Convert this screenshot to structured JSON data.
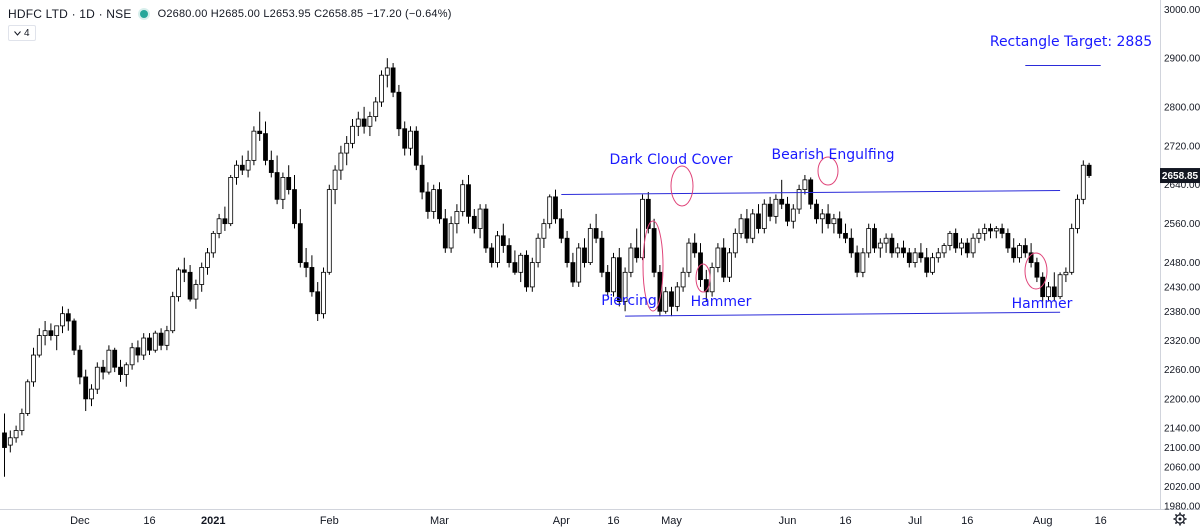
{
  "header": {
    "symbol": "HDFC LTD · 1D · NSE",
    "ohlc": "O2680.00 H2685.00 L2653.95 C2658.85 −17.20 (−0.64%)",
    "collapse_label": "4",
    "collapse_icon": "chevron-down-icon"
  },
  "colors": {
    "annotation": "#1a1aff",
    "trendline": "#2b2bd9",
    "ellipse": "#e0457a",
    "candle_border": "#000000",
    "bear_fill": "#000000",
    "bull_fill": "#ffffff",
    "price_label_bg": "#131722"
  },
  "chart_data": {
    "type": "candlestick",
    "title": "",
    "symbol": "HDFC LTD",
    "interval": "1D",
    "exchange": "NSE",
    "last_price": "2658.85",
    "y_axis": {
      "range": [
        1950,
        3010
      ],
      "ticks": [
        "3000.00",
        "2900.00",
        "2800.00",
        "2720.00",
        "2640.00",
        "2560.00",
        "2480.00",
        "2430.00",
        "2380.00",
        "2320.00",
        "2260.00",
        "2200.00",
        "2140.00",
        "2100.00",
        "2060.00",
        "2020.00",
        "1980.00"
      ]
    },
    "x_axis": {
      "ticks": [
        {
          "label": "Dec",
          "i": 13
        },
        {
          "label": "16",
          "i": 25
        },
        {
          "label": "2021",
          "i": 36
        },
        {
          "label": "Feb",
          "i": 56
        },
        {
          "label": "Mar",
          "i": 75
        },
        {
          "label": "Apr",
          "i": 96
        },
        {
          "label": "16",
          "i": 105
        },
        {
          "label": "May",
          "i": 115
        },
        {
          "label": "Jun",
          "i": 135
        },
        {
          "label": "16",
          "i": 145
        },
        {
          "label": "Jul",
          "i": 157
        },
        {
          "label": "16",
          "i": 166
        },
        {
          "label": "Aug",
          "i": 179
        },
        {
          "label": "16",
          "i": 189
        }
      ]
    },
    "candles": [
      [
        2130,
        2170,
        2040,
        2100
      ],
      [
        2105,
        2135,
        2090,
        2120
      ],
      [
        2120,
        2145,
        2110,
        2135
      ],
      [
        2135,
        2180,
        2125,
        2170
      ],
      [
        2170,
        2240,
        2165,
        2235
      ],
      [
        2235,
        2305,
        2225,
        2290
      ],
      [
        2290,
        2345,
        2285,
        2330
      ],
      [
        2330,
        2360,
        2310,
        2340
      ],
      [
        2340,
        2355,
        2320,
        2330
      ],
      [
        2330,
        2350,
        2300,
        2350
      ],
      [
        2350,
        2390,
        2335,
        2375
      ],
      [
        2375,
        2385,
        2340,
        2360
      ],
      [
        2360,
        2365,
        2290,
        2300
      ],
      [
        2300,
        2310,
        2230,
        2245
      ],
      [
        2245,
        2260,
        2175,
        2200
      ],
      [
        2200,
        2230,
        2185,
        2220
      ],
      [
        2220,
        2275,
        2210,
        2265
      ],
      [
        2265,
        2280,
        2240,
        2255
      ],
      [
        2255,
        2310,
        2250,
        2300
      ],
      [
        2300,
        2305,
        2255,
        2265
      ],
      [
        2265,
        2280,
        2235,
        2250
      ],
      [
        2250,
        2275,
        2225,
        2270
      ],
      [
        2270,
        2315,
        2260,
        2305
      ],
      [
        2305,
        2320,
        2275,
        2290
      ],
      [
        2290,
        2335,
        2280,
        2325
      ],
      [
        2325,
        2335,
        2290,
        2300
      ],
      [
        2300,
        2340,
        2295,
        2335
      ],
      [
        2335,
        2345,
        2300,
        2310
      ],
      [
        2310,
        2350,
        2300,
        2340
      ],
      [
        2340,
        2420,
        2335,
        2410
      ],
      [
        2410,
        2470,
        2400,
        2465
      ],
      [
        2465,
        2490,
        2440,
        2460
      ],
      [
        2460,
        2475,
        2400,
        2405
      ],
      [
        2405,
        2445,
        2385,
        2435
      ],
      [
        2435,
        2480,
        2420,
        2470
      ],
      [
        2470,
        2510,
        2455,
        2500
      ],
      [
        2500,
        2545,
        2490,
        2540
      ],
      [
        2540,
        2580,
        2530,
        2570
      ],
      [
        2570,
        2595,
        2545,
        2560
      ],
      [
        2560,
        2660,
        2555,
        2655
      ],
      [
        2655,
        2690,
        2640,
        2680
      ],
      [
        2680,
        2700,
        2660,
        2670
      ],
      [
        2670,
        2710,
        2655,
        2690
      ],
      [
        2690,
        2760,
        2680,
        2750
      ],
      [
        2750,
        2790,
        2730,
        2745
      ],
      [
        2745,
        2770,
        2680,
        2690
      ],
      [
        2690,
        2710,
        2655,
        2665
      ],
      [
        2665,
        2700,
        2600,
        2610
      ],
      [
        2610,
        2665,
        2590,
        2655
      ],
      [
        2655,
        2680,
        2620,
        2630
      ],
      [
        2630,
        2660,
        2550,
        2560
      ],
      [
        2560,
        2590,
        2470,
        2480
      ],
      [
        2480,
        2510,
        2450,
        2470
      ],
      [
        2470,
        2495,
        2410,
        2420
      ],
      [
        2420,
        2440,
        2360,
        2375
      ],
      [
        2375,
        2470,
        2365,
        2460
      ],
      [
        2460,
        2640,
        2455,
        2630
      ],
      [
        2630,
        2680,
        2600,
        2670
      ],
      [
        2670,
        2720,
        2650,
        2705
      ],
      [
        2705,
        2740,
        2680,
        2725
      ],
      [
        2725,
        2775,
        2715,
        2760
      ],
      [
        2760,
        2790,
        2740,
        2775
      ],
      [
        2775,
        2800,
        2745,
        2760
      ],
      [
        2760,
        2790,
        2740,
        2780
      ],
      [
        2780,
        2820,
        2770,
        2810
      ],
      [
        2810,
        2875,
        2800,
        2865
      ],
      [
        2865,
        2900,
        2840,
        2880
      ],
      [
        2880,
        2890,
        2820,
        2830
      ],
      [
        2830,
        2845,
        2740,
        2755
      ],
      [
        2755,
        2770,
        2700,
        2715
      ],
      [
        2715,
        2760,
        2700,
        2750
      ],
      [
        2750,
        2760,
        2670,
        2680
      ],
      [
        2680,
        2700,
        2610,
        2625
      ],
      [
        2625,
        2645,
        2570,
        2585
      ],
      [
        2585,
        2640,
        2570,
        2630
      ],
      [
        2630,
        2645,
        2560,
        2570
      ],
      [
        2570,
        2590,
        2500,
        2510
      ],
      [
        2510,
        2575,
        2500,
        2560
      ],
      [
        2560,
        2600,
        2540,
        2585
      ],
      [
        2585,
        2650,
        2575,
        2640
      ],
      [
        2640,
        2660,
        2560,
        2575
      ],
      [
        2575,
        2590,
        2540,
        2550
      ],
      [
        2550,
        2600,
        2530,
        2590
      ],
      [
        2590,
        2600,
        2500,
        2510
      ],
      [
        2510,
        2520,
        2470,
        2480
      ],
      [
        2480,
        2545,
        2470,
        2535
      ],
      [
        2535,
        2560,
        2500,
        2515
      ],
      [
        2515,
        2530,
        2470,
        2480
      ],
      [
        2480,
        2505,
        2455,
        2460
      ],
      [
        2460,
        2500,
        2440,
        2495
      ],
      [
        2495,
        2505,
        2420,
        2430
      ],
      [
        2430,
        2490,
        2420,
        2480
      ],
      [
        2480,
        2540,
        2470,
        2530
      ],
      [
        2530,
        2570,
        2510,
        2560
      ],
      [
        2560,
        2620,
        2550,
        2615
      ],
      [
        2615,
        2630,
        2560,
        2570
      ],
      [
        2570,
        2590,
        2520,
        2530
      ],
      [
        2530,
        2545,
        2470,
        2480
      ],
      [
        2480,
        2500,
        2430,
        2440
      ],
      [
        2440,
        2520,
        2430,
        2510
      ],
      [
        2510,
        2530,
        2470,
        2480
      ],
      [
        2480,
        2560,
        2475,
        2550
      ],
      [
        2550,
        2580,
        2520,
        2530
      ],
      [
        2530,
        2545,
        2450,
        2460
      ],
      [
        2460,
        2475,
        2410,
        2420
      ],
      [
        2420,
        2500,
        2410,
        2490
      ],
      [
        2490,
        2510,
        2390,
        2400
      ],
      [
        2400,
        2470,
        2380,
        2460
      ],
      [
        2460,
        2520,
        2450,
        2510
      ],
      [
        2510,
        2550,
        2480,
        2490
      ],
      [
        2490,
        2620,
        2485,
        2610
      ],
      [
        2610,
        2625,
        2540,
        2550
      ],
      [
        2550,
        2570,
        2450,
        2460
      ],
      [
        2460,
        2475,
        2370,
        2380
      ],
      [
        2380,
        2430,
        2375,
        2420
      ],
      [
        2420,
        2430,
        2370,
        2390
      ],
      [
        2390,
        2440,
        2380,
        2430
      ],
      [
        2430,
        2470,
        2420,
        2460
      ],
      [
        2460,
        2530,
        2450,
        2520
      ],
      [
        2520,
        2540,
        2490,
        2500
      ],
      [
        2500,
        2520,
        2430,
        2445
      ],
      [
        2445,
        2465,
        2400,
        2420
      ],
      [
        2420,
        2480,
        2410,
        2470
      ],
      [
        2470,
        2520,
        2460,
        2510
      ],
      [
        2510,
        2530,
        2440,
        2450
      ],
      [
        2450,
        2510,
        2440,
        2500
      ],
      [
        2500,
        2550,
        2490,
        2540
      ],
      [
        2540,
        2580,
        2530,
        2570
      ],
      [
        2570,
        2590,
        2520,
        2530
      ],
      [
        2530,
        2590,
        2520,
        2580
      ],
      [
        2580,
        2600,
        2540,
        2550
      ],
      [
        2550,
        2610,
        2540,
        2600
      ],
      [
        2600,
        2615,
        2565,
        2575
      ],
      [
        2575,
        2620,
        2560,
        2610
      ],
      [
        2610,
        2650,
        2590,
        2600
      ],
      [
        2600,
        2615,
        2555,
        2565
      ],
      [
        2565,
        2600,
        2550,
        2590
      ],
      [
        2590,
        2640,
        2580,
        2630
      ],
      [
        2630,
        2660,
        2620,
        2650
      ],
      [
        2650,
        2655,
        2590,
        2600
      ],
      [
        2600,
        2610,
        2560,
        2570
      ],
      [
        2570,
        2590,
        2540,
        2580
      ],
      [
        2580,
        2600,
        2550,
        2560
      ],
      [
        2560,
        2580,
        2540,
        2570
      ],
      [
        2570,
        2585,
        2530,
        2540
      ],
      [
        2540,
        2560,
        2520,
        2530
      ],
      [
        2530,
        2550,
        2490,
        2500
      ],
      [
        2500,
        2515,
        2450,
        2460
      ],
      [
        2460,
        2510,
        2450,
        2500
      ],
      [
        2500,
        2560,
        2490,
        2550
      ],
      [
        2550,
        2560,
        2500,
        2510
      ],
      [
        2510,
        2530,
        2490,
        2520
      ],
      [
        2520,
        2540,
        2500,
        2530
      ],
      [
        2530,
        2540,
        2490,
        2500
      ],
      [
        2500,
        2520,
        2490,
        2510
      ],
      [
        2510,
        2525,
        2490,
        2500
      ],
      [
        2500,
        2510,
        2470,
        2480
      ],
      [
        2480,
        2510,
        2470,
        2500
      ],
      [
        2500,
        2520,
        2480,
        2490
      ],
      [
        2490,
        2510,
        2450,
        2460
      ],
      [
        2460,
        2500,
        2455,
        2490
      ],
      [
        2490,
        2510,
        2480,
        2500
      ],
      [
        2500,
        2520,
        2490,
        2515
      ],
      [
        2515,
        2545,
        2505,
        2540
      ],
      [
        2540,
        2550,
        2500,
        2510
      ],
      [
        2510,
        2530,
        2495,
        2520
      ],
      [
        2520,
        2530,
        2490,
        2500
      ],
      [
        2500,
        2540,
        2490,
        2530
      ],
      [
        2530,
        2550,
        2520,
        2540
      ],
      [
        2540,
        2560,
        2525,
        2550
      ],
      [
        2550,
        2560,
        2530,
        2545
      ],
      [
        2545,
        2555,
        2530,
        2550
      ],
      [
        2550,
        2560,
        2530,
        2540
      ],
      [
        2540,
        2550,
        2500,
        2510
      ],
      [
        2510,
        2530,
        2480,
        2490
      ],
      [
        2490,
        2520,
        2480,
        2515
      ],
      [
        2515,
        2530,
        2490,
        2500
      ],
      [
        2500,
        2520,
        2470,
        2480
      ],
      [
        2480,
        2490,
        2440,
        2450
      ],
      [
        2450,
        2460,
        2400,
        2410
      ],
      [
        2410,
        2440,
        2400,
        2430
      ],
      [
        2430,
        2460,
        2400,
        2410
      ],
      [
        2410,
        2460,
        2405,
        2455
      ],
      [
        2455,
        2470,
        2440,
        2460
      ],
      [
        2460,
        2560,
        2455,
        2550
      ],
      [
        2550,
        2620,
        2540,
        2610
      ],
      [
        2610,
        2690,
        2600,
        2680
      ],
      [
        2680,
        2685,
        2653.95,
        2658.85
      ]
    ],
    "annotations": [
      {
        "text": "Rectangle Target: 2885"
      },
      {
        "text": "Dark Cloud Cover"
      },
      {
        "text": "Bearish Engulfing"
      },
      {
        "text": "Piercing"
      },
      {
        "text": "Hammer"
      },
      {
        "text": "Hammer"
      }
    ],
    "trendlines": [
      {
        "from": {
          "i": 96,
          "p": 2620
        },
        "to": {
          "i": 182,
          "p": 2628
        }
      },
      {
        "from": {
          "i": 107,
          "p": 2370
        },
        "to": {
          "i": 182,
          "p": 2378
        }
      },
      {
        "from": {
          "i": 176,
          "p": 2885
        },
        "to": {
          "i": 189,
          "p": 2885
        }
      }
    ],
    "grid": false
  }
}
